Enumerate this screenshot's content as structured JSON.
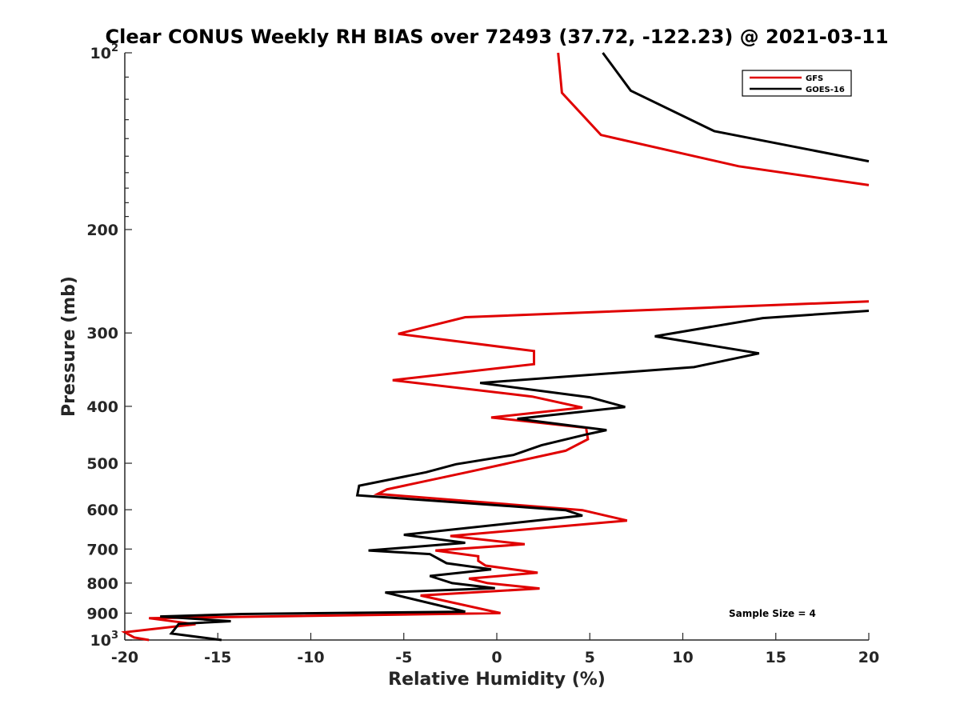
{
  "chart_data": {
    "type": "line",
    "title": "Clear CONUS Weekly RH BIAS over 72493 (37.72, -122.23) @ 2021-03-11",
    "xlabel": "Relative Humidity (%)",
    "ylabel": "Pressure (mb)",
    "xlim": [
      -20,
      20
    ],
    "ylim": [
      100,
      1000
    ],
    "y_scale": "log",
    "y_reversed": true,
    "grid": false,
    "x_ticks": [
      -20,
      -15,
      -10,
      -5,
      0,
      5,
      10,
      15,
      20
    ],
    "y_ticks": [
      {
        "value": 100,
        "label": "10",
        "sup": "2"
      },
      {
        "value": 200,
        "label": "200",
        "sup": ""
      },
      {
        "value": 300,
        "label": "300",
        "sup": ""
      },
      {
        "value": 400,
        "label": "400",
        "sup": ""
      },
      {
        "value": 500,
        "label": "500",
        "sup": ""
      },
      {
        "value": 600,
        "label": "600",
        "sup": ""
      },
      {
        "value": 700,
        "label": "700",
        "sup": ""
      },
      {
        "value": 800,
        "label": "800",
        "sup": ""
      },
      {
        "value": 900,
        "label": "900",
        "sup": ""
      },
      {
        "value": 1000,
        "label": "10",
        "sup": "3"
      }
    ],
    "legend_position": "top-right",
    "annotation": "Sample Size = 4",
    "series": [
      {
        "name": "GFS",
        "color": "#e00000",
        "points": [
          [
            3.3,
            100
          ],
          [
            3.5,
            117
          ],
          [
            5.6,
            138
          ],
          [
            13.0,
            156
          ],
          [
            20.0,
            168
          ],
          [
            null,
            null
          ],
          [
            20.0,
            265
          ],
          [
            -1.7,
            282
          ],
          [
            -5.3,
            301
          ],
          [
            2.0,
            322
          ],
          [
            2.0,
            339
          ],
          [
            -5.6,
            361
          ],
          [
            1.9,
            385
          ],
          [
            4.6,
            402
          ],
          [
            -0.3,
            418
          ],
          [
            4.8,
            435
          ],
          [
            4.9,
            455
          ],
          [
            3.7,
            476
          ],
          [
            -1.6,
            518
          ],
          [
            -5.9,
            554
          ],
          [
            -6.4,
            564
          ],
          [
            4.6,
            601
          ],
          [
            7.0,
            626
          ],
          [
            -2.5,
            665
          ],
          [
            1.5,
            687
          ],
          [
            -3.3,
            704
          ],
          [
            -1.0,
            720
          ],
          [
            -1.0,
            733
          ],
          [
            -0.6,
            747
          ],
          [
            2.2,
            768
          ],
          [
            -1.5,
            786
          ],
          [
            -0.5,
            800
          ],
          [
            2.3,
            817
          ],
          [
            -4.1,
            840
          ],
          [
            0.2,
            900
          ],
          [
            -18.7,
            918
          ],
          [
            -16.2,
            940
          ],
          [
            -20.0,
            970
          ],
          [
            -19.5,
            990
          ],
          [
            -18.7,
            1000
          ]
        ]
      },
      {
        "name": "GOES-16",
        "color": "#000000",
        "points": [
          [
            5.7,
            100
          ],
          [
            7.2,
            116
          ],
          [
            11.7,
            136
          ],
          [
            20.0,
            153
          ],
          [
            null,
            null
          ],
          [
            20.0,
            275
          ],
          [
            14.3,
            283
          ],
          [
            8.5,
            304
          ],
          [
            14.1,
            325
          ],
          [
            10.6,
            343
          ],
          [
            -0.9,
            365
          ],
          [
            5.0,
            386
          ],
          [
            6.9,
            401
          ],
          [
            1.1,
            420
          ],
          [
            5.9,
            439
          ],
          [
            4.9,
            446
          ],
          [
            2.4,
            466
          ],
          [
            0.9,
            484
          ],
          [
            -2.2,
            502
          ],
          [
            -3.8,
            518
          ],
          [
            -7.4,
            546
          ],
          [
            -7.5,
            567
          ],
          [
            3.7,
            601
          ],
          [
            4.6,
            614
          ],
          [
            -5.0,
            662
          ],
          [
            -1.7,
            683
          ],
          [
            -6.9,
            704
          ],
          [
            -3.6,
            714
          ],
          [
            -2.7,
            740
          ],
          [
            -0.3,
            758
          ],
          [
            -3.6,
            778
          ],
          [
            -2.4,
            800
          ],
          [
            -0.1,
            816
          ],
          [
            -6.0,
            830
          ],
          [
            -1.7,
            895
          ],
          [
            -13.7,
            903
          ],
          [
            -18.1,
            912
          ],
          [
            -14.3,
            929
          ],
          [
            -17.1,
            939
          ],
          [
            -17.5,
            975
          ],
          [
            -14.8,
            1000
          ]
        ]
      }
    ]
  }
}
